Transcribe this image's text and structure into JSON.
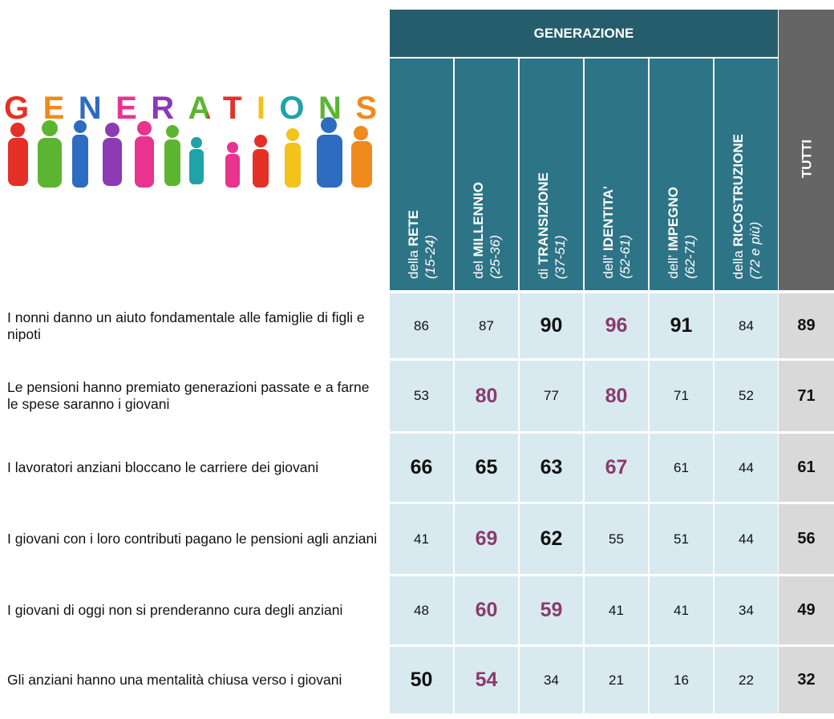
{
  "logo": "GENERATIONS",
  "header": {
    "group": "GENERAZIONE",
    "total": "TUTTI",
    "columns": [
      {
        "prefix": "della",
        "name": "RETE",
        "ages": "(15-24)"
      },
      {
        "prefix": "del",
        "name": "MILLENNIO",
        "ages": "(25-36)"
      },
      {
        "prefix": "di",
        "name": "TRANSIZIONE",
        "ages": "(37-51)"
      },
      {
        "prefix": "dell'",
        "name": "IDENTITA'",
        "ages": "(52-61)"
      },
      {
        "prefix": "dell'",
        "name": "IMPEGNO",
        "ages": "(62-71)"
      },
      {
        "prefix": "della",
        "name": "RICOSTRUZIONE",
        "ages": "(72 e più)"
      }
    ]
  },
  "table": {
    "rows": [
      {
        "label": "I nonni danno un aiuto fondamentale alle famiglie di figli e nipoti",
        "values": [
          86,
          87,
          90,
          96,
          91,
          84
        ],
        "total": 89,
        "bold": [
          2,
          4
        ],
        "purple": [
          3
        ]
      },
      {
        "label": "Le pensioni hanno premiato generazioni passate e a farne le spese saranno i giovani",
        "values": [
          53,
          80,
          77,
          80,
          71,
          52
        ],
        "total": 71,
        "bold": [],
        "purple": [
          1,
          3
        ]
      },
      {
        "label": "I lavoratori anziani bloccano le carriere dei giovani",
        "values": [
          66,
          65,
          63,
          67,
          61,
          44
        ],
        "total": 61,
        "bold": [
          0,
          1,
          2
        ],
        "purple": [
          3
        ]
      },
      {
        "label": "I giovani con i loro contributi pagano le pensioni agli anziani",
        "values": [
          41,
          69,
          62,
          55,
          51,
          44
        ],
        "total": 56,
        "bold": [
          2
        ],
        "purple": [
          1
        ]
      },
      {
        "label": "I giovani di oggi non si prenderanno cura degli anziani",
        "values": [
          48,
          60,
          59,
          41,
          41,
          34
        ],
        "total": 49,
        "bold": [],
        "purple": [
          1,
          2
        ]
      },
      {
        "label": "Gli anziani hanno una mentalità chiusa verso i giovani",
        "values": [
          50,
          54,
          34,
          21,
          16,
          22
        ],
        "total": 32,
        "bold": [
          0
        ],
        "purple": [
          1
        ]
      }
    ]
  }
}
